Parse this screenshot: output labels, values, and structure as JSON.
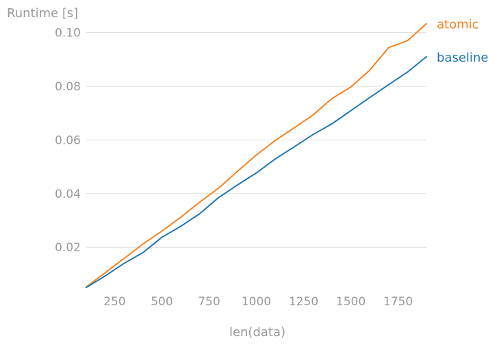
{
  "chart_data": {
    "type": "line",
    "title": "",
    "xlabel": "len(data)",
    "ylabel": "Runtime [s]",
    "xlim": [
      100,
      1900
    ],
    "ylim": [
      0.005,
      0.105
    ],
    "x_ticks": [
      250,
      500,
      750,
      1000,
      1250,
      1500,
      1750
    ],
    "x_tick_labels": [
      "250",
      "500",
      "750",
      "1000",
      "1250",
      "1500",
      "1750"
    ],
    "y_ticks": [
      0.02,
      0.04,
      0.06,
      0.08,
      0.1
    ],
    "y_tick_labels": [
      "0.02",
      "0.04",
      "0.06",
      "0.08",
      "0.10"
    ],
    "grid": "horizontal",
    "legend_placement": "right, at line ends",
    "x": [
      100,
      200,
      300,
      400,
      500,
      600,
      700,
      800,
      900,
      1000,
      1100,
      1200,
      1300,
      1400,
      1500,
      1600,
      1700,
      1800,
      1900
    ],
    "series": [
      {
        "name": "atomic",
        "color": "#f5831f",
        "values": [
          0.0052,
          0.0105,
          0.0158,
          0.0212,
          0.026,
          0.0312,
          0.0368,
          0.042,
          0.0483,
          0.0544,
          0.0598,
          0.0645,
          0.0693,
          0.0754,
          0.0797,
          0.086,
          0.0944,
          0.097,
          0.1033
        ]
      },
      {
        "name": "baseline",
        "color": "#1f77b4",
        "values": [
          0.005,
          0.0093,
          0.014,
          0.018,
          0.0237,
          0.0278,
          0.0325,
          0.0385,
          0.0432,
          0.0477,
          0.0529,
          0.0574,
          0.062,
          0.066,
          0.0709,
          0.0758,
          0.0806,
          0.0853,
          0.091
        ]
      }
    ]
  }
}
